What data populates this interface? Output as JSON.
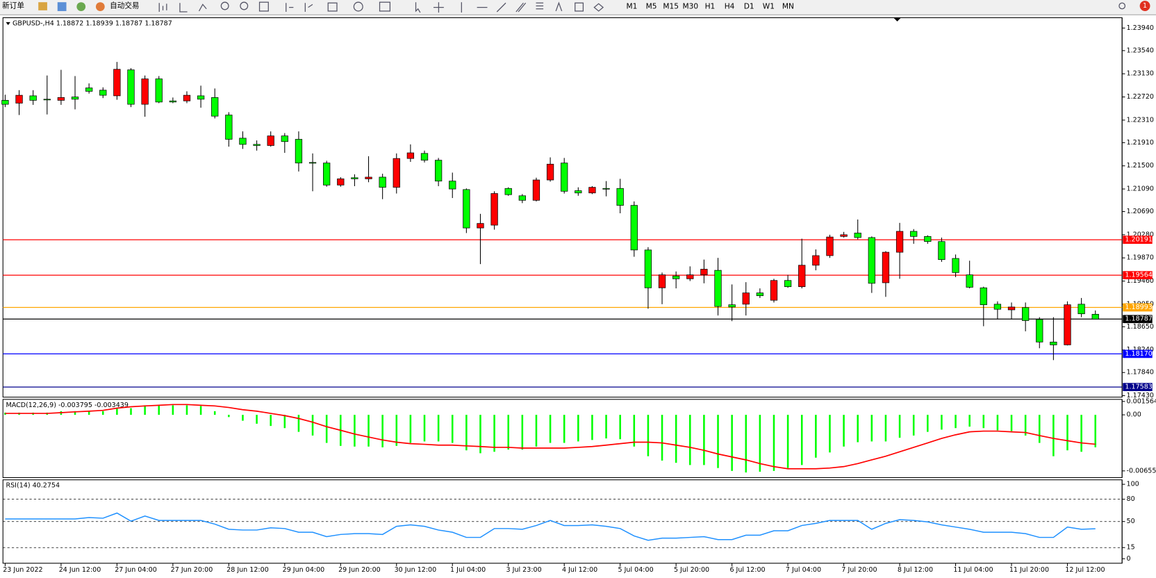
{
  "toolbar": {
    "new_order": "新订单",
    "auto_trading": "自动交易",
    "timeframes": [
      "M1",
      "M5",
      "M15",
      "M30",
      "H1",
      "H4",
      "D1",
      "W1",
      "MN"
    ],
    "notifications": "1"
  },
  "chart_data": [
    {
      "type": "candlestick",
      "title": "GBPUSD-,H4  1.18872 1.18939 1.18787 1.18787",
      "up_color": "#ff0000",
      "down_color": "#00ff00",
      "grid": false,
      "categories": [
        "23 Jun 2022",
        null,
        null,
        null,
        "24 Jun 12:00",
        null,
        null,
        null,
        "27 Jun 04:00",
        null,
        null,
        null,
        "27 Jun 20:00",
        null,
        null,
        null,
        "28 Jun 12:00",
        null,
        null,
        null,
        "29 Jun 04:00",
        null,
        null,
        null,
        "29 Jun 20:00",
        null,
        null,
        null,
        "30 Jun 12:00",
        null,
        null,
        null,
        "1 Jul 04:00",
        null,
        null,
        null,
        "3 Jul 23:00",
        null,
        null,
        null,
        "4 Jul 12:00",
        null,
        null,
        null,
        "5 Jul 04:00",
        null,
        null,
        null,
        "5 Jul 20:00",
        null,
        null,
        null,
        "6 Jul 12:00",
        null,
        null,
        null,
        "7 Jul 04:00",
        null,
        null,
        null,
        "7 Jul 20:00",
        null,
        null,
        null,
        "8 Jul 12:00",
        null,
        null,
        null,
        "11 Jul 04:00",
        null,
        null,
        null,
        "11 Jul 20:00",
        null,
        null,
        null,
        "12 Jul 12:00",
        null,
        null
      ],
      "open": [
        1.2266,
        1.2261,
        1.2274,
        1.2268,
        1.2266,
        1.2272,
        1.2288,
        1.2284,
        1.2274,
        1.232,
        1.2259,
        1.2304,
        1.2265,
        1.2265,
        1.2274,
        1.2271,
        1.224,
        1.2199,
        1.2188,
        1.2186,
        1.2203,
        1.2197,
        1.2156,
        1.2155,
        1.2116,
        1.2129,
        1.2127,
        1.213,
        1.2112,
        1.2163,
        1.2172,
        1.216,
        1.2123,
        1.2108,
        1.204,
        1.2045,
        1.211,
        1.2097,
        1.2089,
        1.2125,
        1.2155,
        1.2106,
        1.2102,
        1.211,
        1.211,
        1.208,
        1.2001,
        1.1934,
        1.1955,
        1.195,
        1.1957,
        1.1965,
        1.1904,
        1.1905,
        1.1925,
        1.1912,
        1.1947,
        1.1936,
        1.1974,
        1.1991,
        1.2025,
        1.2031,
        1.2023,
        1.1943,
        1.1997,
        1.2034,
        1.2025,
        1.2016,
        1.1986,
        1.1957,
        1.1934,
        1.1905,
        1.1895,
        1.1899,
        1.1878,
        1.1838,
        1.1833,
        1.1905,
        1.18872
      ],
      "high": [
        1.2276,
        1.2284,
        1.2284,
        1.231,
        1.232,
        1.2309,
        1.2296,
        1.2289,
        1.2334,
        1.2323,
        1.231,
        1.2309,
        1.2271,
        1.2282,
        1.2292,
        1.2287,
        1.2245,
        1.2211,
        1.2195,
        1.2211,
        1.2208,
        1.2211,
        1.2172,
        1.2159,
        1.213,
        1.2135,
        1.2167,
        1.2136,
        1.2172,
        1.2188,
        1.2177,
        1.2164,
        1.2138,
        1.211,
        1.2065,
        1.2105,
        1.2112,
        1.21,
        1.2129,
        1.2165,
        1.2164,
        1.2112,
        1.2114,
        1.2123,
        1.2127,
        1.2087,
        1.2006,
        1.1961,
        1.1963,
        1.1972,
        1.1984,
        1.1987,
        1.194,
        1.1944,
        1.1933,
        1.195,
        1.1957,
        1.2021,
        1.2002,
        1.2028,
        1.2033,
        1.2055,
        1.2025,
        1.1999,
        1.2049,
        1.2038,
        1.2027,
        1.2023,
        1.1993,
        1.1982,
        1.1936,
        1.191,
        1.1908,
        1.1908,
        1.1882,
        1.1882,
        1.191,
        1.1916,
        1.18939
      ],
      "low": [
        1.2254,
        1.224,
        1.2258,
        1.2241,
        1.2258,
        1.225,
        1.2278,
        1.227,
        1.2267,
        1.2254,
        1.2237,
        1.2261,
        1.2261,
        1.2261,
        1.2253,
        1.2234,
        1.2184,
        1.218,
        1.2177,
        1.2184,
        1.2173,
        1.214,
        1.2105,
        1.2113,
        1.2113,
        1.2114,
        1.2121,
        1.2091,
        1.2101,
        1.2157,
        1.2156,
        1.2114,
        1.2093,
        1.2031,
        1.1976,
        1.2037,
        1.2097,
        1.2084,
        1.2087,
        1.2122,
        1.2101,
        1.2097,
        1.21,
        1.2096,
        1.2066,
        1.1989,
        1.1897,
        1.1905,
        1.1933,
        1.1946,
        1.1942,
        1.1885,
        1.1875,
        1.1885,
        1.1916,
        1.1908,
        1.1934,
        1.1933,
        1.1965,
        1.1987,
        1.2023,
        1.202,
        1.1925,
        1.1918,
        1.195,
        1.2012,
        1.2012,
        1.198,
        1.1953,
        1.1933,
        1.1866,
        1.1879,
        1.1879,
        1.1857,
        1.1827,
        1.1806,
        1.1832,
        1.1882,
        1.18787
      ],
      "close": [
        1.2259,
        1.2275,
        1.2266,
        1.2267,
        1.2271,
        1.2268,
        1.2282,
        1.2275,
        1.2321,
        1.2259,
        1.2304,
        1.2263,
        1.2263,
        1.2275,
        1.2268,
        1.2238,
        1.2197,
        1.2188,
        1.2186,
        1.2203,
        1.2193,
        1.2155,
        1.2155,
        1.2116,
        1.2127,
        1.2127,
        1.213,
        1.2112,
        1.2163,
        1.2173,
        1.216,
        1.2123,
        1.2109,
        1.204,
        1.2048,
        1.2101,
        1.2099,
        1.2089,
        1.2125,
        1.2153,
        1.2105,
        1.2102,
        1.2112,
        1.2109,
        1.208,
        1.2001,
        1.1934,
        1.1957,
        1.195,
        1.1957,
        1.1967,
        1.1901,
        1.19,
        1.1925,
        1.192,
        1.1947,
        1.1936,
        1.1974,
        1.1991,
        1.2024,
        1.2028,
        1.2023,
        1.1942,
        1.1997,
        1.2034,
        1.2025,
        1.2016,
        1.1984,
        1.1961,
        1.1935,
        1.1904,
        1.1896,
        1.19,
        1.1876,
        1.1838,
        1.1833,
        1.1904,
        1.1888,
        1.18787
      ],
      "ylim": [
        1.17404,
        1.24123
      ],
      "yticks": [
        {
          "value": 1.2394,
          "label": "1.23940"
        },
        {
          "value": 1.2354,
          "label": "1.23540"
        },
        {
          "value": 1.2313,
          "label": "1.23130"
        },
        {
          "value": 1.2272,
          "label": "1.22720"
        },
        {
          "value": 1.2231,
          "label": "1.22310"
        },
        {
          "value": 1.2191,
          "label": "1.21910"
        },
        {
          "value": 1.215,
          "label": "1.21500"
        },
        {
          "value": 1.2109,
          "label": "1.21090"
        },
        {
          "value": 1.2069,
          "label": "1.20690"
        },
        {
          "value": 1.2028,
          "label": "1.20280"
        },
        {
          "value": 1.1987,
          "label": "1.19870"
        },
        {
          "value": 1.1946,
          "label": "1.19460"
        },
        {
          "value": 1.1905,
          "label": "1.19050"
        },
        {
          "value": 1.1865,
          "label": "1.18650"
        },
        {
          "value": 1.1824,
          "label": "1.18240"
        },
        {
          "value": 1.1784,
          "label": "1.17840"
        },
        {
          "value": 1.1743,
          "label": "1.17430"
        }
      ],
      "levels": [
        {
          "value": 1.20191,
          "color": "#ff0000"
        },
        {
          "value": 1.19564,
          "color": "#ff0000"
        },
        {
          "value": 1.18993,
          "color": "#ffa500"
        },
        {
          "value": 1.18787,
          "color": "#000000"
        },
        {
          "value": 1.1817,
          "label": "1.18170",
          "color": "#0000ff"
        },
        {
          "value": 1.17583,
          "color": "#00008b"
        }
      ]
    },
    {
      "type": "bar",
      "title": "MACD(12,26,9) -0.003795 -0.003439",
      "ylim": [
        -0.00734,
        0.00181
      ],
      "yticks": [
        0.001564,
        {
          "value": 0,
          "label": "0.00"
        },
        -0.006555
      ],
      "series": [
        {
          "type": "bar",
          "color": "#00ff00",
          "values": [
            0.00026,
            0.00026,
            0.00026,
            0.00026,
            0.00043,
            0.00043,
            0.00043,
            0.00043,
            0.00078,
            0.00078,
            0.00112,
            0.00112,
            0.00112,
            0.00112,
            0.00104,
            0.00043,
            -0.00026,
            -0.00069,
            -0.00104,
            -0.0013,
            -0.00155,
            -0.00199,
            -0.00242,
            -0.00328,
            -0.00363,
            -0.00371,
            -0.00371,
            -0.0038,
            -0.00363,
            -0.00328,
            -0.00311,
            -0.00311,
            -0.00328,
            -0.00415,
            -0.00449,
            -0.00432,
            -0.00406,
            -0.00406,
            -0.00371,
            -0.00328,
            -0.00328,
            -0.00311,
            -0.00294,
            -0.00276,
            -0.00285,
            -0.00371,
            -0.00484,
            -0.00535,
            -0.00561,
            -0.00587,
            -0.00587,
            -0.00622,
            -0.00656,
            -0.00674,
            -0.00665,
            -0.00656,
            -0.00622,
            -0.00587,
            -0.00501,
            -0.0044,
            -0.00371,
            -0.0032,
            -0.00311,
            -0.00311,
            -0.00268,
            -0.00242,
            -0.00199,
            -0.00173,
            -0.00155,
            -0.00138,
            -0.00155,
            -0.00181,
            -0.0019,
            -0.00242,
            -0.00328,
            -0.00484,
            -0.00415,
            -0.00432,
            -0.003795
          ]
        },
        {
          "type": "line",
          "color": "#ff0000",
          "values": [
            0.00017,
            0.00017,
            0.00017,
            0.00017,
            0.00026,
            0.00035,
            0.00043,
            0.00052,
            0.00078,
            0.00095,
            0.00104,
            0.00112,
            0.00121,
            0.00121,
            0.00112,
            0.00104,
            0.00086,
            0.0006,
            0.00043,
            0.00017,
            -9e-05,
            -0.00043,
            -0.00086,
            -0.00138,
            -0.00181,
            -0.00225,
            -0.00259,
            -0.00294,
            -0.0032,
            -0.00337,
            -0.00345,
            -0.00354,
            -0.00354,
            -0.00363,
            -0.00371,
            -0.0038,
            -0.0038,
            -0.00389,
            -0.00389,
            -0.00389,
            -0.00389,
            -0.0038,
            -0.00371,
            -0.00354,
            -0.00337,
            -0.0032,
            -0.0032,
            -0.00328,
            -0.00354,
            -0.0038,
            -0.00415,
            -0.00458,
            -0.00492,
            -0.00527,
            -0.0057,
            -0.00605,
            -0.0063,
            -0.0063,
            -0.0063,
            -0.00622,
            -0.00605,
            -0.0057,
            -0.00527,
            -0.00484,
            -0.00432,
            -0.0038,
            -0.00328,
            -0.00276,
            -0.00233,
            -0.00199,
            -0.0019,
            -0.0019,
            -0.00199,
            -0.00207,
            -0.00242,
            -0.00276,
            -0.00302,
            -0.00328,
            -0.003439
          ]
        }
      ]
    },
    {
      "type": "line",
      "title": "RSI(14) 40.2754",
      "ylim": [
        -6,
        106
      ],
      "yticks": [
        100,
        80,
        50,
        15,
        0
      ],
      "color": "#1e90ff",
      "values": [
        53.5,
        53.5,
        53.5,
        53.5,
        53.5,
        53.5,
        55.4,
        54.5,
        61.4,
        50.5,
        57.4,
        51.5,
        51.5,
        51.5,
        51.5,
        46.5,
        39.6,
        38.6,
        38.6,
        41.6,
        40.6,
        35.6,
        35.6,
        29.7,
        32.7,
        33.7,
        33.7,
        32.7,
        43.6,
        45.5,
        43.6,
        38.6,
        35.6,
        28.7,
        28.7,
        40.6,
        40.6,
        39.6,
        44.6,
        51.5,
        44.6,
        44.6,
        45.5,
        43.6,
        40.6,
        30.7,
        24.8,
        27.7,
        27.7,
        28.7,
        29.7,
        25.7,
        25.7,
        31.7,
        31.7,
        37.6,
        37.6,
        44.6,
        47.5,
        51.5,
        51.5,
        51.5,
        39.6,
        47.5,
        52.5,
        51.5,
        49.5,
        45.5,
        42.6,
        39.6,
        35.6,
        35.6,
        35.6,
        33.7,
        28.7,
        28.7,
        42.6,
        39.6,
        40.2754
      ]
    }
  ]
}
